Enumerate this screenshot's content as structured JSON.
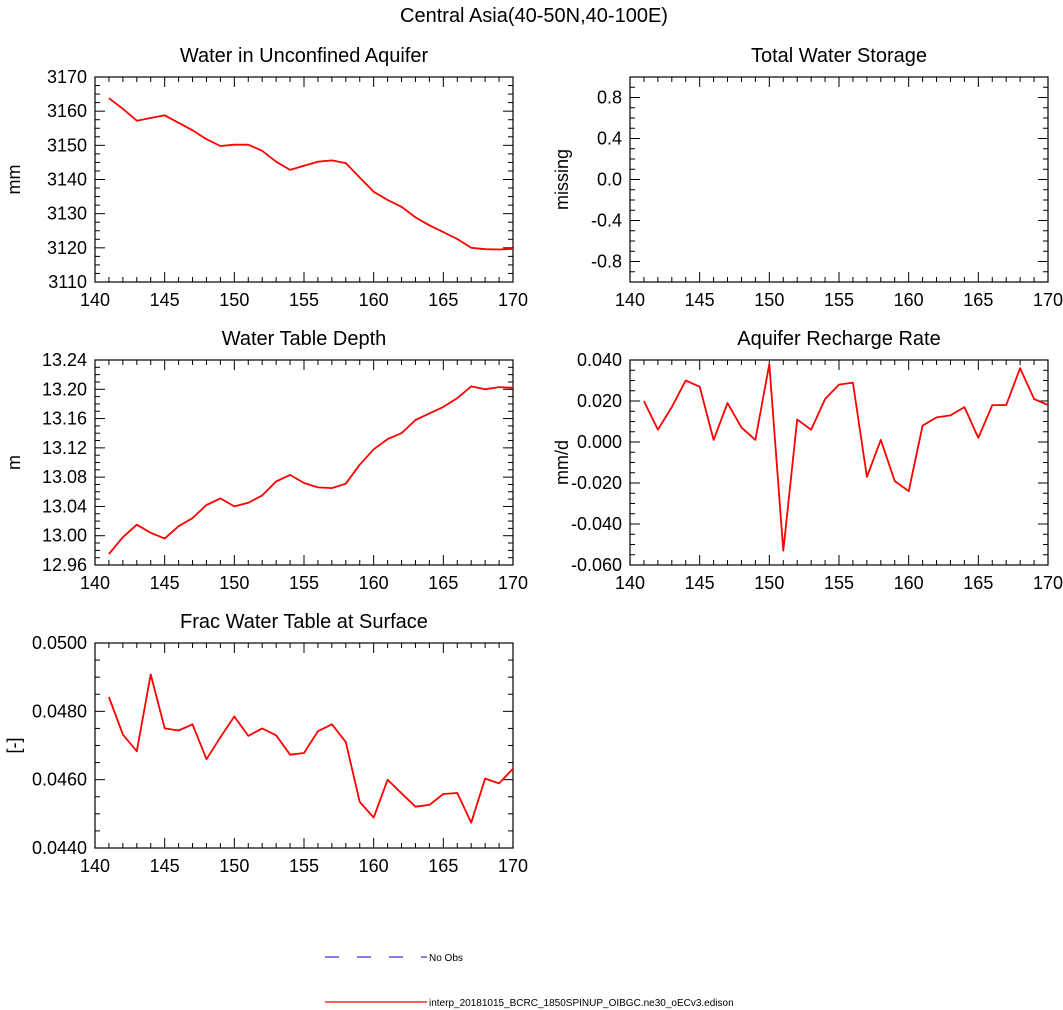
{
  "figure_title": "Central Asia(40-50N,40-100E)",
  "legend": [
    {
      "label": "No Obs",
      "color": "#0000cc",
      "style": "dashed"
    },
    {
      "label": "interp_20181015_BCRC_1850SPINUP_OIBGC.ne30_oECv3.edison",
      "color": "#ff0000",
      "style": "solid"
    }
  ],
  "chart_data": [
    {
      "type": "line",
      "title": "Water in Unconfined Aquifer",
      "ylabel": "mm",
      "xlim": [
        140,
        170
      ],
      "ylim": [
        3110,
        3170
      ],
      "xticks": [
        "140",
        "145",
        "150",
        "155",
        "160",
        "165",
        "170"
      ],
      "yticks": [
        "3110",
        "3120",
        "3130",
        "3140",
        "3150",
        "3160",
        "3170"
      ],
      "x": [
        141,
        142,
        143,
        144,
        145,
        146,
        147,
        148,
        149,
        150,
        151,
        152,
        153,
        154,
        155,
        156,
        157,
        158,
        159,
        160,
        161,
        162,
        163,
        164,
        165,
        166,
        167,
        168,
        169,
        170
      ],
      "series": [
        {
          "name": "interp_20181015_BCRC_1850SPINUP_OIBGC.ne30_oECv3.edison",
          "color": "#ff0000",
          "values": [
            3163.8,
            3160.7,
            3157.2,
            3158.0,
            3158.8,
            3156.6,
            3154.4,
            3151.8,
            3149.8,
            3150.2,
            3150.2,
            3148.4,
            3145.2,
            3142.8,
            3144.0,
            3145.2,
            3145.6,
            3144.8,
            3140.6,
            3136.4,
            3134.0,
            3132.0,
            3128.9,
            3126.6,
            3124.6,
            3122.6,
            3120.0,
            3119.6,
            3119.5,
            3119.7
          ]
        }
      ]
    },
    {
      "type": "line",
      "title": "Total Water Storage",
      "ylabel": "missing",
      "xlim": [
        140,
        170
      ],
      "ylim": [
        -1.0,
        1.0
      ],
      "xticks": [
        "140",
        "145",
        "150",
        "155",
        "160",
        "165",
        "170"
      ],
      "yticks": [
        "-0.8",
        "-0.4",
        "0.0",
        "0.4",
        "0.8"
      ],
      "ytick_values": [
        -0.8,
        -0.4,
        0.0,
        0.4,
        0.8
      ],
      "x": [],
      "series": []
    },
    {
      "type": "line",
      "title": "Water Table Depth",
      "ylabel": "m",
      "xlim": [
        140,
        170
      ],
      "ylim": [
        12.96,
        13.24
      ],
      "xticks": [
        "140",
        "145",
        "150",
        "155",
        "160",
        "165",
        "170"
      ],
      "yticks": [
        "12.96",
        "13.00",
        "13.04",
        "13.08",
        "13.12",
        "13.16",
        "13.20",
        "13.24"
      ],
      "x": [
        141,
        142,
        143,
        144,
        145,
        146,
        147,
        148,
        149,
        150,
        151,
        152,
        153,
        154,
        155,
        156,
        157,
        158,
        159,
        160,
        161,
        162,
        163,
        164,
        165,
        166,
        167,
        168,
        169,
        170
      ],
      "series": [
        {
          "name": "interp_20181015_BCRC_1850SPINUP_OIBGC.ne30_oECv3.edison",
          "color": "#ff0000",
          "values": [
            12.975,
            12.998,
            13.015,
            13.004,
            12.996,
            13.013,
            13.024,
            13.042,
            13.051,
            13.04,
            13.045,
            13.055,
            13.074,
            13.083,
            13.072,
            13.066,
            13.065,
            13.071,
            13.097,
            13.118,
            13.132,
            13.14,
            13.158,
            13.167,
            13.176,
            13.188,
            13.204,
            13.2,
            13.203,
            13.202
          ]
        }
      ]
    },
    {
      "type": "line",
      "title": "Aquifer Recharge Rate",
      "ylabel": "mm/d",
      "xlim": [
        140,
        170
      ],
      "ylim": [
        -0.06,
        0.04
      ],
      "xticks": [
        "140",
        "145",
        "150",
        "155",
        "160",
        "165",
        "170"
      ],
      "yticks": [
        "-0.060",
        "-0.040",
        "-0.020",
        "0.000",
        "0.020",
        "0.040"
      ],
      "x": [
        141,
        142,
        143,
        144,
        145,
        146,
        147,
        148,
        149,
        150,
        151,
        152,
        153,
        154,
        155,
        156,
        157,
        158,
        159,
        160,
        161,
        162,
        163,
        164,
        165,
        166,
        167,
        168,
        169,
        170
      ],
      "series": [
        {
          "name": "interp_20181015_BCRC_1850SPINUP_OIBGC.ne30_oECv3.edison",
          "color": "#ff0000",
          "values": [
            0.02,
            0.006,
            0.017,
            0.03,
            0.027,
            0.001,
            0.019,
            0.007,
            0.001,
            0.038,
            -0.053,
            0.011,
            0.006,
            0.021,
            0.028,
            0.029,
            -0.017,
            0.001,
            -0.019,
            -0.024,
            0.008,
            0.012,
            0.013,
            0.017,
            0.002,
            0.018,
            0.018,
            0.036,
            0.021,
            0.018
          ]
        }
      ]
    },
    {
      "type": "line",
      "title": "Frac Water Table at Surface",
      "ylabel": "[-]",
      "xlim": [
        140,
        170
      ],
      "ylim": [
        0.044,
        0.05
      ],
      "xticks": [
        "140",
        "145",
        "150",
        "155",
        "160",
        "165",
        "170"
      ],
      "yticks": [
        "0.0440",
        "0.0460",
        "0.0480",
        "0.0500"
      ],
      "x": [
        141,
        142,
        143,
        144,
        145,
        146,
        147,
        148,
        149,
        150,
        151,
        152,
        153,
        154,
        155,
        156,
        157,
        158,
        159,
        160,
        161,
        162,
        163,
        164,
        165,
        166,
        167,
        168,
        169,
        170
      ],
      "series": [
        {
          "name": "interp_20181015_BCRC_1850SPINUP_OIBGC.ne30_oECv3.edison",
          "color": "#ff0000",
          "values": [
            0.04842,
            0.04732,
            0.04683,
            0.04908,
            0.0475,
            0.04744,
            0.04762,
            0.0466,
            0.04724,
            0.04785,
            0.04728,
            0.0475,
            0.0473,
            0.04673,
            0.04678,
            0.04742,
            0.04762,
            0.0471,
            0.04535,
            0.04489,
            0.046,
            0.0456,
            0.04521,
            0.04526,
            0.04558,
            0.04561,
            0.04474,
            0.04603,
            0.04589,
            0.04632
          ]
        }
      ]
    }
  ]
}
